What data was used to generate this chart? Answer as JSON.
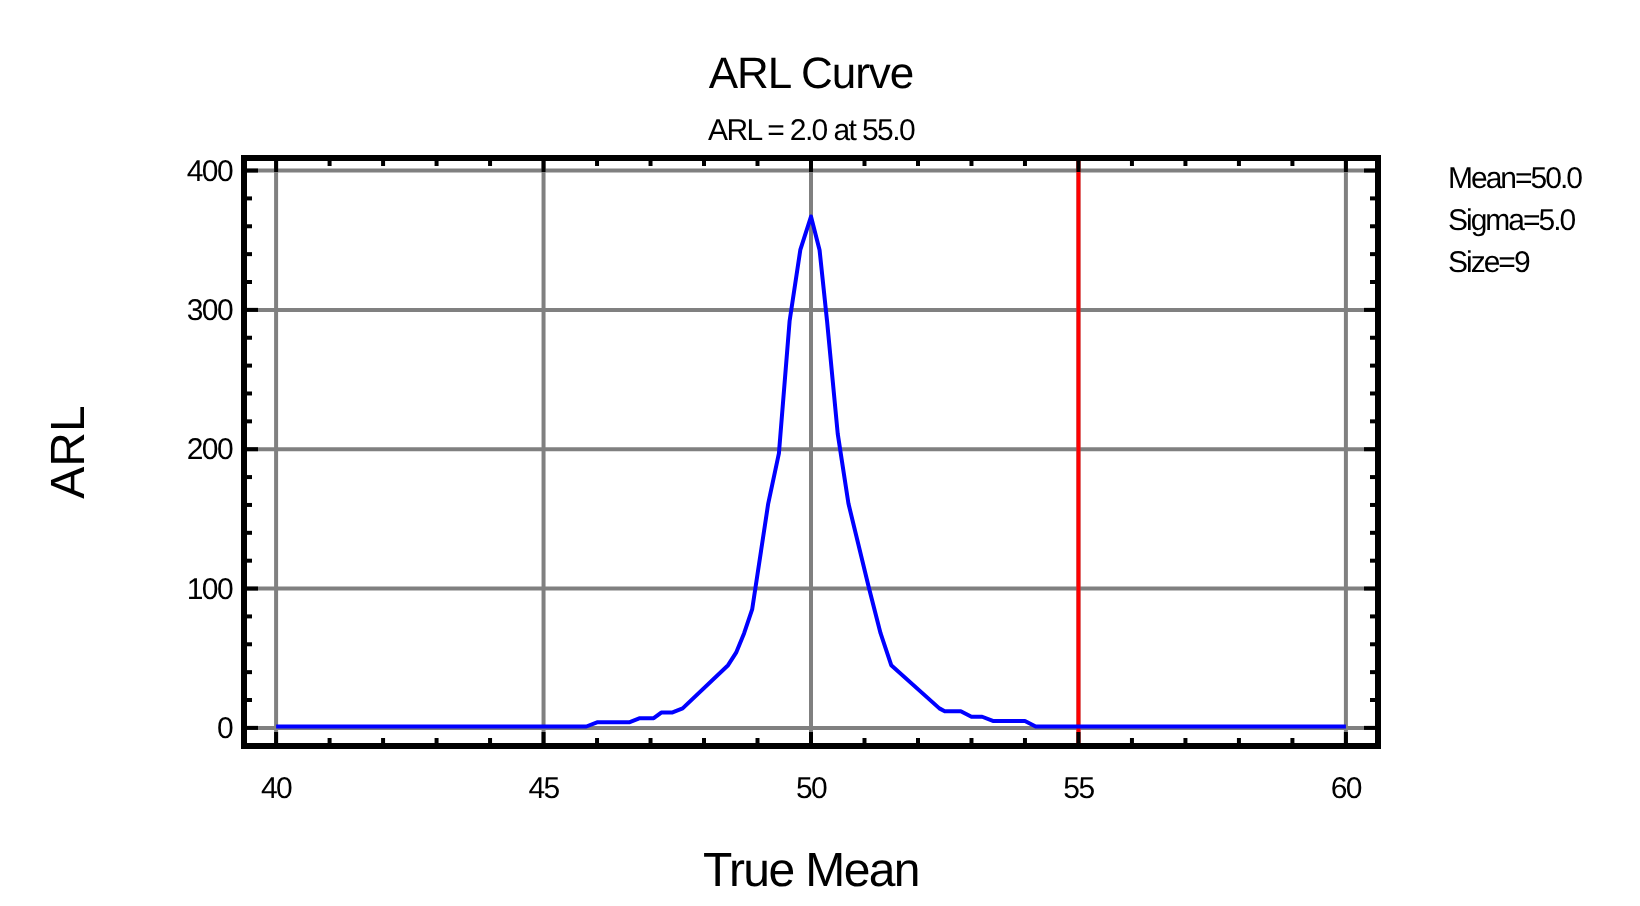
{
  "chart_data": {
    "type": "line",
    "title": "ARL Curve",
    "subtitle": "ARL = 2.0 at 55.0",
    "xlabel": "True Mean",
    "ylabel": "ARL",
    "x": [
      40,
      45.8,
      46,
      46.6,
      46.8,
      47.06,
      47.2,
      47.4,
      47.6,
      48.45,
      48.6,
      48.75,
      48.9,
      49.2,
      49.4,
      49.6,
      49.8,
      50,
      50.16,
      50.3,
      50.5,
      50.7,
      51.08,
      51.3,
      51.5,
      52.4,
      52.5,
      52.8,
      53,
      53.2,
      53.4,
      54,
      54.2,
      60
    ],
    "series": [
      {
        "color": "#0000ff",
        "values": [
          1,
          1,
          4,
          4,
          7,
          7,
          11,
          11,
          14,
          45,
          54,
          68,
          85,
          161,
          197,
          292,
          343,
          367,
          343,
          292,
          211,
          161,
          101,
          68,
          45,
          14,
          12,
          12,
          8,
          8,
          5,
          5,
          1,
          1
        ]
      }
    ],
    "xlim": [
      39.4,
      60.6
    ],
    "ylim": [
      -13,
      409
    ],
    "xticks": [
      40,
      45,
      50,
      55,
      60
    ],
    "yticks": [
      0,
      100,
      200,
      300,
      400
    ],
    "grid": true,
    "ref_lines": [
      {
        "axis": "x",
        "value": 55,
        "color": "#ff0000"
      }
    ],
    "annotations": [
      "Mean=50.0",
      "Sigma=5.0",
      "Size=9"
    ]
  }
}
